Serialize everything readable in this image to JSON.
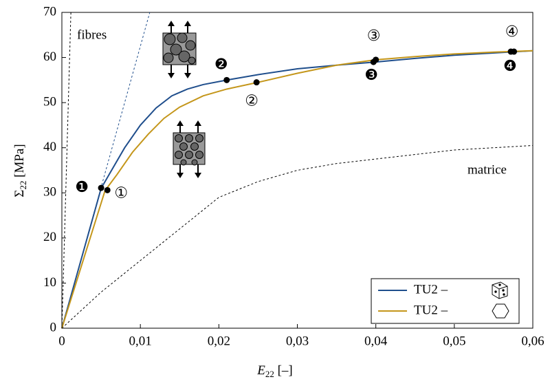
{
  "chart_data": {
    "type": "line",
    "xlabel": [
      "E",
      "22",
      " [–]"
    ],
    "ylabel": [
      "Σ",
      "22",
      " [MPa]"
    ],
    "xlim": [
      0,
      0.06
    ],
    "ylim": [
      0,
      70
    ],
    "xticks": [
      0,
      {
        "value": 0.01,
        "label": "0,01"
      },
      {
        "value": 0.02,
        "label": "0,02"
      },
      {
        "value": 0.03,
        "label": "0,03"
      },
      {
        "value": 0.04,
        "label": "0,04"
      },
      {
        "value": 0.05,
        "label": "0,05"
      },
      {
        "value": 0.06,
        "label": "0,06"
      }
    ],
    "yticks": [
      0,
      10,
      20,
      30,
      40,
      50,
      60,
      70
    ],
    "legend": "lower right",
    "series": [
      {
        "name": "TU2 –",
        "color": "#1f4e8c",
        "x": [
          0,
          0.005,
          0.006,
          0.008,
          0.01,
          0.012,
          0.014,
          0.016,
          0.018,
          0.021,
          0.025,
          0.03,
          0.035,
          0.04,
          0.045,
          0.05,
          0.055,
          0.06
        ],
        "values": [
          0,
          31,
          34,
          40,
          45,
          48.8,
          51.5,
          53,
          54,
          55,
          56.2,
          57.5,
          58.3,
          59,
          59.8,
          60.5,
          61,
          61.5
        ]
      },
      {
        "name": "TU2 –",
        "color": "#c4961a",
        "x": [
          0,
          0.0055,
          0.007,
          0.009,
          0.011,
          0.013,
          0.015,
          0.018,
          0.021,
          0.025,
          0.03,
          0.035,
          0.04,
          0.045,
          0.05,
          0.055,
          0.06
        ],
        "values": [
          0,
          30.5,
          34,
          39,
          43,
          46.5,
          49,
          51.5,
          53,
          54.5,
          56.5,
          58.3,
          59.5,
          60.2,
          60.8,
          61.2,
          61.5
        ]
      }
    ],
    "reference_curves": [
      {
        "name": "fibres",
        "color": "#000000",
        "x": [
          0,
          0.00115
        ],
        "values": [
          0,
          70
        ]
      },
      {
        "name": "matrice",
        "color": "#000000",
        "x": [
          0,
          0.005,
          0.01,
          0.015,
          0.02,
          0.025,
          0.03,
          0.035,
          0.04,
          0.045,
          0.05,
          0.055,
          0.06
        ],
        "values": [
          0,
          8,
          15,
          22,
          29,
          32.5,
          35,
          36.5,
          37.5,
          38.5,
          39.5,
          40,
          40.5
        ]
      },
      {
        "color": "#1f4e8c",
        "x": [
          0,
          0.0112
        ],
        "values": [
          0,
          70
        ]
      }
    ],
    "points": [
      {
        "label": "❶",
        "x": 0.005,
        "y": 31.1
      },
      {
        "label": "①",
        "x": 0.0058,
        "y": 30.6
      },
      {
        "label": "❷",
        "x": 0.021,
        "y": 55
      },
      {
        "label": "②",
        "x": 0.0248,
        "y": 54.5
      },
      {
        "label": "❸",
        "x": 0.0397,
        "y": 59
      },
      {
        "label": "③",
        "x": 0.04,
        "y": 59.5
      },
      {
        "label": "❹",
        "x": 0.0572,
        "y": 61.3
      },
      {
        "label": "④",
        "x": 0.0576,
        "y": 61.3
      }
    ]
  }
}
